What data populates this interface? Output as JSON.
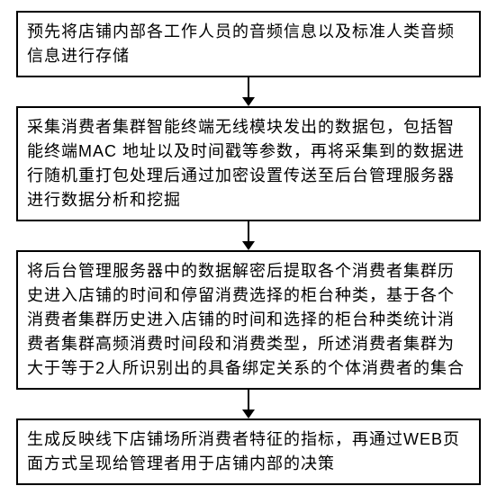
{
  "flowchart": {
    "type": "flowchart",
    "direction": "vertical",
    "nodes": [
      {
        "id": "step1",
        "text": "预先将店铺内部各工作人员的音频信息以及标准人类音频信息进行存储"
      },
      {
        "id": "step2",
        "text": "采集消费者集群智能终端无线模块发出的数据包，包括智能终端MAC 地址以及时间戳等参数，再将采集到的数据进行随机重打包处理后通过加密设置传送至后台管理服务器进行数据分析和挖掘"
      },
      {
        "id": "step3",
        "text": "将后台管理服务器中的数据解密后提取各个消费者集群历史进入店铺的时间和停留消费选择的柜台种类，基于各个消费者集群历史进入店铺的时间和选择的柜台种类统计消费者集群高频消费时间段和消费类型，所述消费者集群为大于等于2人所识别出的具备绑定关系的个体消费者的集合"
      },
      {
        "id": "step4",
        "text": "生成反映线下店铺场所消费者特征的指标，再通过WEB页面方式呈现给管理者用于店铺内部的决策"
      }
    ],
    "edges": [
      {
        "from": "step1",
        "to": "step2"
      },
      {
        "from": "step2",
        "to": "step3"
      },
      {
        "from": "step3",
        "to": "step4"
      }
    ],
    "style": {
      "box_border_color": "#000000",
      "box_border_width": 2,
      "box_bg_color": "#ffffff",
      "text_color": "#000000",
      "font_size": 18,
      "arrow_color": "#000000",
      "page_bg": "#ffffff"
    }
  }
}
